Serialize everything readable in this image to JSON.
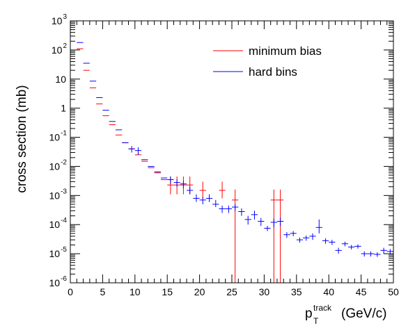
{
  "chart_data": {
    "type": "scatter",
    "title": "",
    "xlabel": {
      "main": "p",
      "sub": "T",
      "sup": "track",
      "unit": "(GeV/c)"
    },
    "ylabel": "cross section (mb)",
    "xlim": [
      0,
      50
    ],
    "ylim": [
      1e-06,
      1000
    ],
    "y_scale": "log",
    "grid": false,
    "legend_position": "top-right",
    "x_tick_labels": [
      "0",
      "5",
      "10",
      "15",
      "20",
      "25",
      "30",
      "35",
      "40",
      "45",
      "50"
    ],
    "y_tick_labels": [
      {
        "base": "10",
        "exp": "-6"
      },
      {
        "base": "10",
        "exp": "-5"
      },
      {
        "base": "10",
        "exp": "-4"
      },
      {
        "base": "10",
        "exp": "-3"
      },
      {
        "base": "10",
        "exp": "-2"
      },
      {
        "base": "10",
        "exp": "-1"
      },
      {
        "base": "1",
        "exp": ""
      },
      {
        "base": "10",
        "exp": ""
      },
      {
        "base": "10",
        "exp": "2"
      },
      {
        "base": "10",
        "exp": "3"
      }
    ],
    "series": [
      {
        "name": "minimum bias",
        "color": "#ff0000",
        "points": [
          {
            "x": 1.5,
            "y": 110
          },
          {
            "x": 2.5,
            "y": 20
          },
          {
            "x": 3.5,
            "y": 5
          },
          {
            "x": 4.5,
            "y": 1.4
          },
          {
            "x": 5.5,
            "y": 0.55
          },
          {
            "x": 6.5,
            "y": 0.27
          },
          {
            "x": 7.5,
            "y": 0.12
          },
          {
            "x": 8.5,
            "y": 0.065
          },
          {
            "x": 9.5,
            "y": 0.04
          },
          {
            "x": 10.5,
            "y": 0.025
          },
          {
            "x": 11.5,
            "y": 0.015
          },
          {
            "x": 12.5,
            "y": 0.009
          },
          {
            "x": 13.5,
            "y": 0.006
          },
          {
            "x": 14.5,
            "y": 0.0035
          },
          {
            "x": 15.5,
            "y": 0.0023,
            "lo": 0.0011,
            "hi": 0.0045
          },
          {
            "x": 16.5,
            "y": 0.0023,
            "lo": 0.0011,
            "hi": 0.0045
          },
          {
            "x": 17.5,
            "y": 0.0023,
            "lo": 0.0011,
            "hi": 0.0045
          },
          {
            "x": 18.5,
            "y": 0.0023,
            "lo": 0.0011,
            "hi": 0.0045
          },
          {
            "x": 20.5,
            "y": 0.0015,
            "lo": 0.0008,
            "hi": 0.003
          },
          {
            "x": 23.5,
            "y": 0.0015,
            "lo": 0.0008,
            "hi": 0.003
          },
          {
            "x": 25.5,
            "y": 0.0007,
            "lo": 1e-06,
            "hi": 0.0016
          },
          {
            "x": 31.5,
            "y": 0.0007,
            "lo": 1e-06,
            "hi": 0.0016
          },
          {
            "x": 32.5,
            "y": 0.0007,
            "lo": 1e-06,
            "hi": 0.0016
          }
        ]
      },
      {
        "name": "hard bins",
        "color": "#0000ff",
        "points": [
          {
            "x": 1.5,
            "y": 180
          },
          {
            "x": 2.5,
            "y": 35
          },
          {
            "x": 3.5,
            "y": 8.5
          },
          {
            "x": 4.5,
            "y": 2.3
          },
          {
            "x": 5.5,
            "y": 0.85
          },
          {
            "x": 6.5,
            "y": 0.35
          },
          {
            "x": 7.5,
            "y": 0.18
          },
          {
            "x": 8.5,
            "y": 0.065
          },
          {
            "x": 9.5,
            "y": 0.04,
            "lo": 0.03,
            "hi": 0.05
          },
          {
            "x": 10.5,
            "y": 0.035,
            "lo": 0.025,
            "hi": 0.045
          },
          {
            "x": 11.5,
            "y": 0.017
          },
          {
            "x": 12.5,
            "y": 0.01
          },
          {
            "x": 13.5,
            "y": 0.0065
          },
          {
            "x": 14.5,
            "y": 0.004
          },
          {
            "x": 15.5,
            "y": 0.0035,
            "lo": 0.0025,
            "hi": 0.0045
          },
          {
            "x": 16.5,
            "y": 0.0028,
            "lo": 0.002,
            "hi": 0.0036
          },
          {
            "x": 17.5,
            "y": 0.0025,
            "lo": 0.0018,
            "hi": 0.0032
          },
          {
            "x": 18.5,
            "y": 0.0015,
            "lo": 0.0011,
            "hi": 0.002
          },
          {
            "x": 19.5,
            "y": 0.0008,
            "lo": 0.0006,
            "hi": 0.0011
          },
          {
            "x": 20.5,
            "y": 0.0007,
            "lo": 0.0005,
            "hi": 0.0009
          },
          {
            "x": 21.5,
            "y": 0.0008,
            "lo": 0.0006,
            "hi": 0.0011
          },
          {
            "x": 22.5,
            "y": 0.0005,
            "lo": 0.0004,
            "hi": 0.0007
          },
          {
            "x": 23.5,
            "y": 0.00035,
            "lo": 0.00025,
            "hi": 0.00045
          },
          {
            "x": 24.5,
            "y": 0.00035,
            "lo": 0.00025,
            "hi": 0.00045
          },
          {
            "x": 25.5,
            "y": 0.0004,
            "lo": 0.0003,
            "hi": 0.0005
          },
          {
            "x": 26.5,
            "y": 0.00028,
            "lo": 0.0002,
            "hi": 0.00036
          },
          {
            "x": 27.5,
            "y": 0.00015,
            "lo": 0.0001,
            "hi": 0.0002
          },
          {
            "x": 28.5,
            "y": 0.00022,
            "lo": 0.00015,
            "hi": 0.0003
          },
          {
            "x": 29.5,
            "y": 0.00013,
            "lo": 9e-05,
            "hi": 0.00017
          },
          {
            "x": 30.5,
            "y": 7.5e-05,
            "lo": 6e-05,
            "hi": 9e-05
          },
          {
            "x": 31.5,
            "y": 0.00012,
            "lo": 8e-05,
            "hi": 0.00016
          },
          {
            "x": 32.5,
            "y": 0.00013,
            "lo": 9e-05,
            "hi": 0.00017
          },
          {
            "x": 33.5,
            "y": 4.5e-05,
            "lo": 3.5e-05,
            "hi": 5.5e-05
          },
          {
            "x": 34.5,
            "y": 5e-05,
            "lo": 4e-05,
            "hi": 6e-05
          },
          {
            "x": 35.5,
            "y": 3e-05,
            "lo": 2.4e-05,
            "hi": 3.6e-05
          },
          {
            "x": 36.5,
            "y": 3.5e-05,
            "lo": 2.8e-05,
            "hi": 4.2e-05
          },
          {
            "x": 37.5,
            "y": 4e-05,
            "lo": 3e-05,
            "hi": 5e-05
          },
          {
            "x": 38.5,
            "y": 8e-05,
            "lo": 5e-05,
            "hi": 0.00015
          },
          {
            "x": 39.5,
            "y": 2.8e-05,
            "lo": 2.2e-05,
            "hi": 3.4e-05
          },
          {
            "x": 40.5,
            "y": 2.5e-05,
            "lo": 2e-05,
            "hi": 3e-05
          },
          {
            "x": 41.5,
            "y": 1.3e-05,
            "lo": 1e-05,
            "hi": 1.6e-05
          },
          {
            "x": 42.5,
            "y": 2.2e-05,
            "lo": 1.8e-05,
            "hi": 2.6e-05
          },
          {
            "x": 43.5,
            "y": 1.7e-05,
            "lo": 1.4e-05,
            "hi": 2e-05
          },
          {
            "x": 44.5,
            "y": 1.8e-05,
            "lo": 1.5e-05,
            "hi": 2.1e-05
          },
          {
            "x": 45.5,
            "y": 1e-05,
            "lo": 8e-06,
            "hi": 1.2e-05
          },
          {
            "x": 46.5,
            "y": 1e-05,
            "lo": 8e-06,
            "hi": 1.2e-05
          },
          {
            "x": 47.5,
            "y": 9.5e-06,
            "lo": 7.8e-06,
            "hi": 1.12e-05
          },
          {
            "x": 48.5,
            "y": 1.3e-05,
            "lo": 1e-05,
            "hi": 1.6e-05
          },
          {
            "x": 49.5,
            "y": 1.2e-05,
            "lo": 9.5e-06,
            "hi": 1.45e-05
          }
        ]
      }
    ]
  }
}
